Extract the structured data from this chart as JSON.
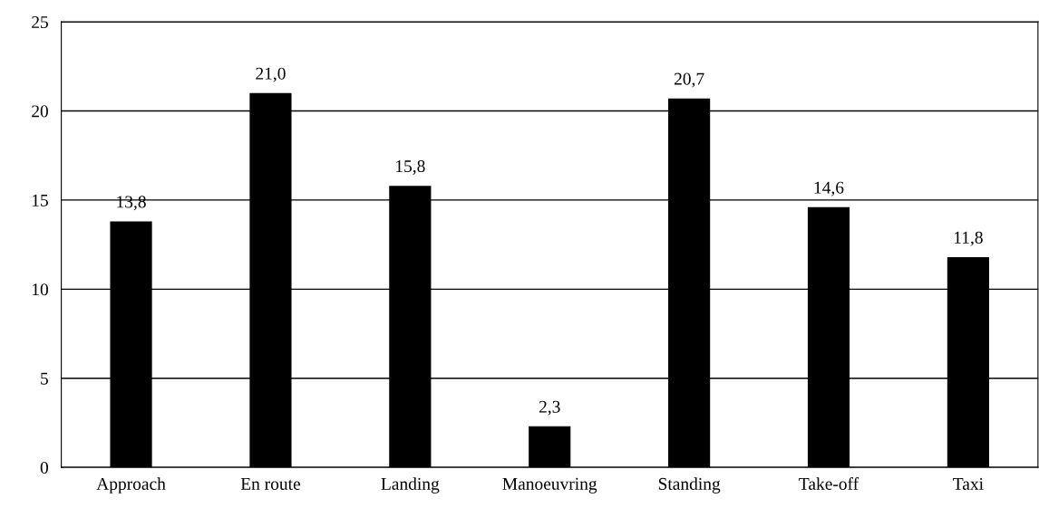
{
  "chart_data": {
    "type": "bar",
    "categories": [
      "Approach",
      "En route",
      "Landing",
      "Manoeuvring",
      "Standing",
      "Take-off",
      "Taxi"
    ],
    "values": [
      13.8,
      21.0,
      15.8,
      2.3,
      20.7,
      14.6,
      11.8
    ],
    "value_labels": [
      "13,8",
      "21,0",
      "15,8",
      "2,3",
      "20,7",
      "14,6",
      "11,8"
    ],
    "color": "#000000",
    "ylim": [
      0,
      25
    ],
    "yticks": [
      0,
      5,
      10,
      15,
      20,
      25
    ],
    "grid": "y",
    "legend": false
  }
}
